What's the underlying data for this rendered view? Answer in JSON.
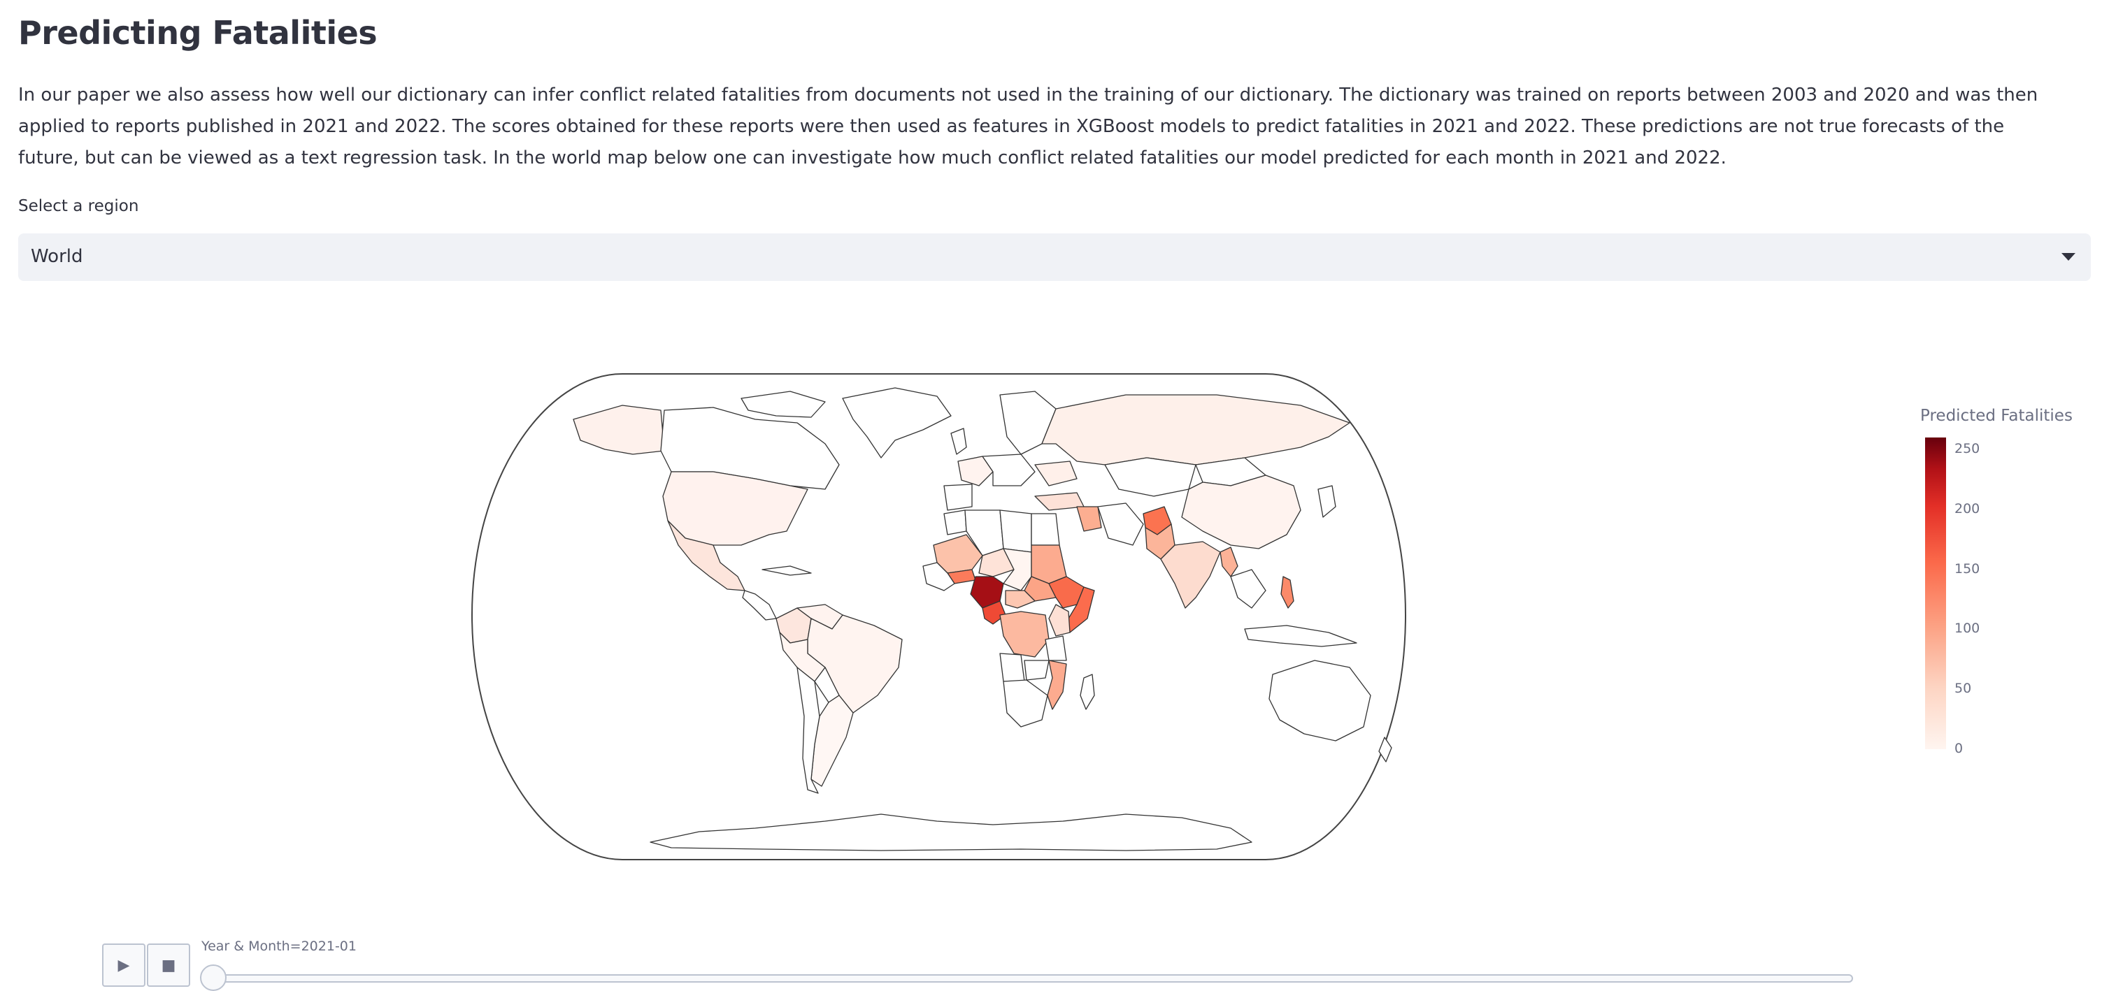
{
  "header": {
    "title": "Predicting Fatalities"
  },
  "intro": {
    "text": "In our paper we also assess how well our dictionary can infer conflict related fatalities from documents not used in the training of our dictionary. The dictionary was trained on reports between 2003 and 2020 and was then applied to reports published in 2021 and 2022. The scores obtained for these reports were then used as features in XGBoost models to predict fatalities in 2021 and 2022. These predictions are not true forecasts of the future, but can be viewed as a text regression task. In the world map below one can investigate how much conflict related fatalities our model predicted for each month in 2021 and 2022."
  },
  "region_select": {
    "label": "Select a region",
    "value": "World"
  },
  "map": {
    "colorscale": "Reds",
    "colors": {
      "base": "#fff5f0",
      "low": "#fdd4c2",
      "mid": "#fc9272",
      "high": "#ef3b2c",
      "max": "#a50f15",
      "outline": "#333333"
    }
  },
  "legend": {
    "title": "Predicted Fatalities",
    "ticks": [
      "250",
      "200",
      "150",
      "100",
      "50",
      "0"
    ],
    "range": [
      0,
      260
    ]
  },
  "animation": {
    "play_icon": "play-icon",
    "stop_icon": "stop-icon",
    "current_label": "Year & Month=2021-01",
    "progress": 0.0
  }
}
